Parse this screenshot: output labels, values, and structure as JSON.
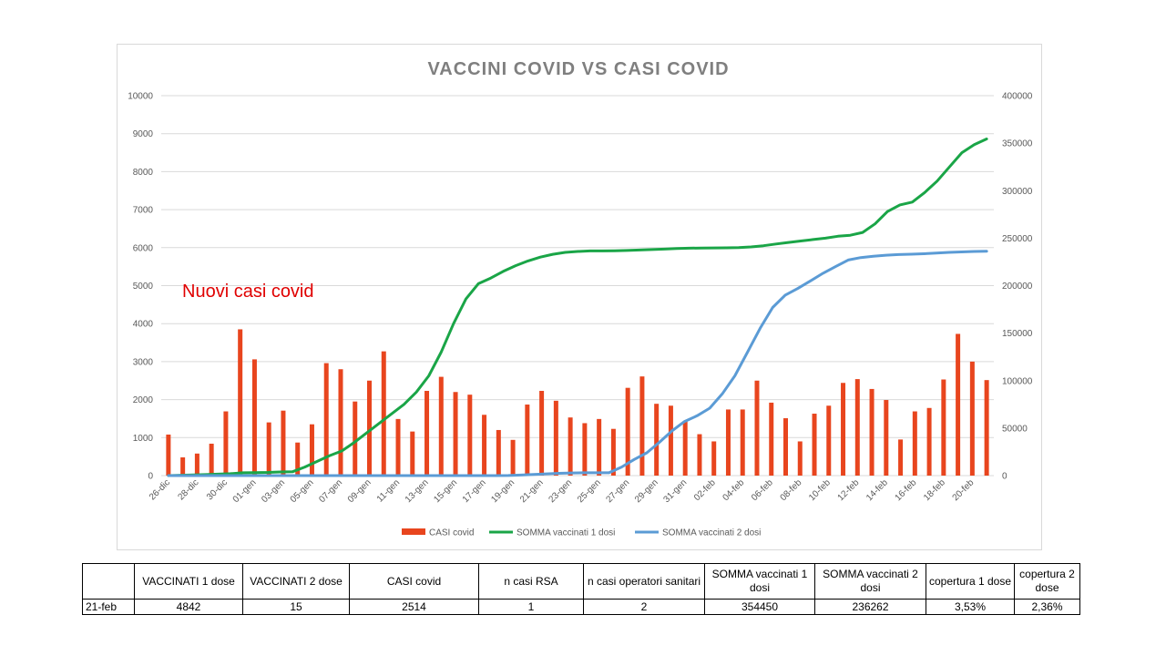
{
  "chart_data": {
    "type": "bar",
    "title": "VACCINI COVID VS CASI COVID",
    "annotation": "Nuovi casi covid",
    "left_axis": {
      "ticks": [
        "0",
        "1000",
        "2000",
        "3000",
        "4000",
        "5000",
        "6000",
        "7000",
        "8000",
        "9000",
        "10000"
      ],
      "range": [
        0,
        10000
      ]
    },
    "right_axis": {
      "ticks": [
        "0",
        "50000",
        "100000",
        "150000",
        "200000",
        "250000",
        "300000",
        "350000",
        "400000"
      ],
      "range": [
        0,
        400000
      ]
    },
    "x_tick_labels": [
      "26-dic",
      "28-dic",
      "30-dic",
      "01-gen",
      "03-gen",
      "05-gen",
      "07-gen",
      "09-gen",
      "11-gen",
      "13-gen",
      "15-gen",
      "17-gen",
      "19-gen",
      "21-gen",
      "23-gen",
      "25-gen",
      "27-gen",
      "29-gen",
      "31-gen",
      "02-feb",
      "04-feb",
      "06-feb",
      "08-feb",
      "10-feb",
      "12-feb",
      "14-feb",
      "16-feb",
      "18-feb",
      "20-feb"
    ],
    "grid": "horizontal",
    "legend_position": "bottom",
    "series": [
      {
        "name": "CASI covid",
        "type": "bar",
        "axis": "left",
        "color": "#e8451e",
        "values": [
          1080,
          480,
          580,
          840,
          1690,
          3850,
          3060,
          1400,
          1710,
          870,
          1350,
          2960,
          2800,
          1950,
          2500,
          3270,
          1490,
          1160,
          2230,
          2600,
          2200,
          2130,
          1600,
          1200,
          940,
          1870,
          2230,
          1970,
          1530,
          1380,
          1490,
          1230,
          2310,
          2610,
          1890,
          1840,
          1440,
          1090,
          900,
          1740,
          1740,
          2500,
          1920,
          1510,
          900,
          1630,
          1840,
          2440,
          2540,
          2280,
          1990,
          950,
          1690,
          1780,
          2530,
          3730,
          3000,
          2514
        ]
      },
      {
        "name": "SOMMA vaccinati 1 dosi",
        "type": "line",
        "axis": "right",
        "color": "#1aa547",
        "values": [
          0,
          400,
          800,
          1100,
          1500,
          2000,
          3000,
          3200,
          3400,
          3800,
          4000,
          9000,
          15000,
          21000,
          26000,
          35000,
          45000,
          55000,
          65000,
          75000,
          88000,
          105000,
          130000,
          160000,
          186000,
          202000,
          208000,
          215000,
          221000,
          226000,
          230000,
          233000,
          235000,
          236000,
          236500,
          236500,
          236700,
          237000,
          237500,
          238000,
          238500,
          239000,
          239400,
          239600,
          239700,
          239800,
          240000,
          240800,
          242000,
          243800,
          245500,
          247000,
          248500,
          250000,
          252000,
          253000,
          256000,
          265000,
          278000,
          285000,
          288000,
          298000,
          310000,
          325000,
          340000,
          348500,
          354450
        ]
      },
      {
        "name": "SOMMA vaccinati  2 dosi",
        "type": "line",
        "axis": "right",
        "color": "#5b9bd5",
        "values": [
          0,
          0,
          0,
          0,
          0,
          0,
          0,
          0,
          0,
          0,
          0,
          0,
          0,
          0,
          0,
          0,
          0,
          0,
          0,
          0,
          0,
          0,
          0,
          0,
          0,
          0,
          0,
          100,
          600,
          1200,
          1800,
          2400,
          2800,
          3000,
          3000,
          3000,
          9000,
          17000,
          24000,
          35000,
          47000,
          57000,
          63000,
          71000,
          86000,
          105000,
          130000,
          155000,
          177000,
          190000,
          197000,
          205000,
          213000,
          220000,
          227000,
          229500,
          231000,
          232000,
          232700,
          233100,
          233600,
          234300,
          235000,
          235500,
          236000,
          236262
        ]
      }
    ]
  },
  "table": {
    "headers": [
      "",
      "VACCINATI 1 dose",
      "VACCINATI 2 dose",
      "CASI covid",
      "n casi RSA",
      "n casi operatori sanitari",
      "SOMMA vaccinati 1 dosi",
      "SOMMA vaccinati  2 dosi",
      "copertura 1 dose",
      "copertura 2 dose"
    ],
    "row": [
      "21-feb",
      "4842",
      "15",
      "2514",
      "1",
      "2",
      "354450",
      "236262",
      "3,53%",
      "2,36%"
    ]
  }
}
